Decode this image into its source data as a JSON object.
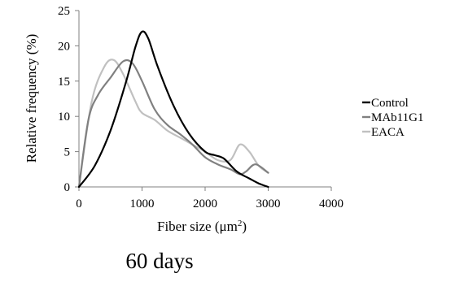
{
  "chart_data": {
    "type": "line",
    "ylabel": "Relative frequency (%)",
    "xlabel_parts": [
      "Fiber size (",
      "μm",
      "2",
      ")"
    ],
    "x_ticks": [
      0,
      1000,
      2000,
      3000,
      4000
    ],
    "y_ticks": [
      0,
      5,
      10,
      15,
      20,
      25
    ],
    "xlim": [
      0,
      4000
    ],
    "ylim": [
      0,
      25
    ],
    "legend_position": "right",
    "series": [
      {
        "name": "Control",
        "color": "#000000",
        "points": [
          [
            0,
            0
          ],
          [
            250,
            3
          ],
          [
            500,
            8
          ],
          [
            750,
            15
          ],
          [
            900,
            20
          ],
          [
            1000,
            22
          ],
          [
            1100,
            21
          ],
          [
            1250,
            17
          ],
          [
            1500,
            11.5
          ],
          [
            1750,
            7.5
          ],
          [
            2000,
            5
          ],
          [
            2150,
            4.5
          ],
          [
            2300,
            4
          ],
          [
            2500,
            2.2
          ],
          [
            2700,
            1.2
          ],
          [
            2850,
            0.5
          ],
          [
            3000,
            0
          ]
        ]
      },
      {
        "name": "MAb11G1",
        "color": "#808080",
        "points": [
          [
            0,
            0
          ],
          [
            150,
            9.5
          ],
          [
            300,
            13
          ],
          [
            500,
            15.5
          ],
          [
            700,
            17.8
          ],
          [
            850,
            17.5
          ],
          [
            1000,
            15
          ],
          [
            1200,
            11
          ],
          [
            1400,
            8.8
          ],
          [
            1600,
            7.5
          ],
          [
            1800,
            6
          ],
          [
            2000,
            4.2
          ],
          [
            2200,
            3.2
          ],
          [
            2400,
            2.5
          ],
          [
            2550,
            1.8
          ],
          [
            2650,
            2.2
          ],
          [
            2800,
            3.2
          ],
          [
            3000,
            2
          ]
        ]
      },
      {
        "name": "EACA",
        "color": "#c0c0c0",
        "points": [
          [
            0,
            0
          ],
          [
            200,
            12
          ],
          [
            400,
            17
          ],
          [
            550,
            18
          ],
          [
            700,
            16
          ],
          [
            900,
            12
          ],
          [
            1000,
            10.5
          ],
          [
            1200,
            9.5
          ],
          [
            1400,
            8
          ],
          [
            1600,
            7
          ],
          [
            1800,
            6
          ],
          [
            2000,
            5
          ],
          [
            2200,
            3.8
          ],
          [
            2400,
            3.8
          ],
          [
            2550,
            6
          ],
          [
            2700,
            5
          ],
          [
            2850,
            3
          ],
          [
            3000,
            2
          ]
        ]
      }
    ]
  },
  "caption": "60 days"
}
